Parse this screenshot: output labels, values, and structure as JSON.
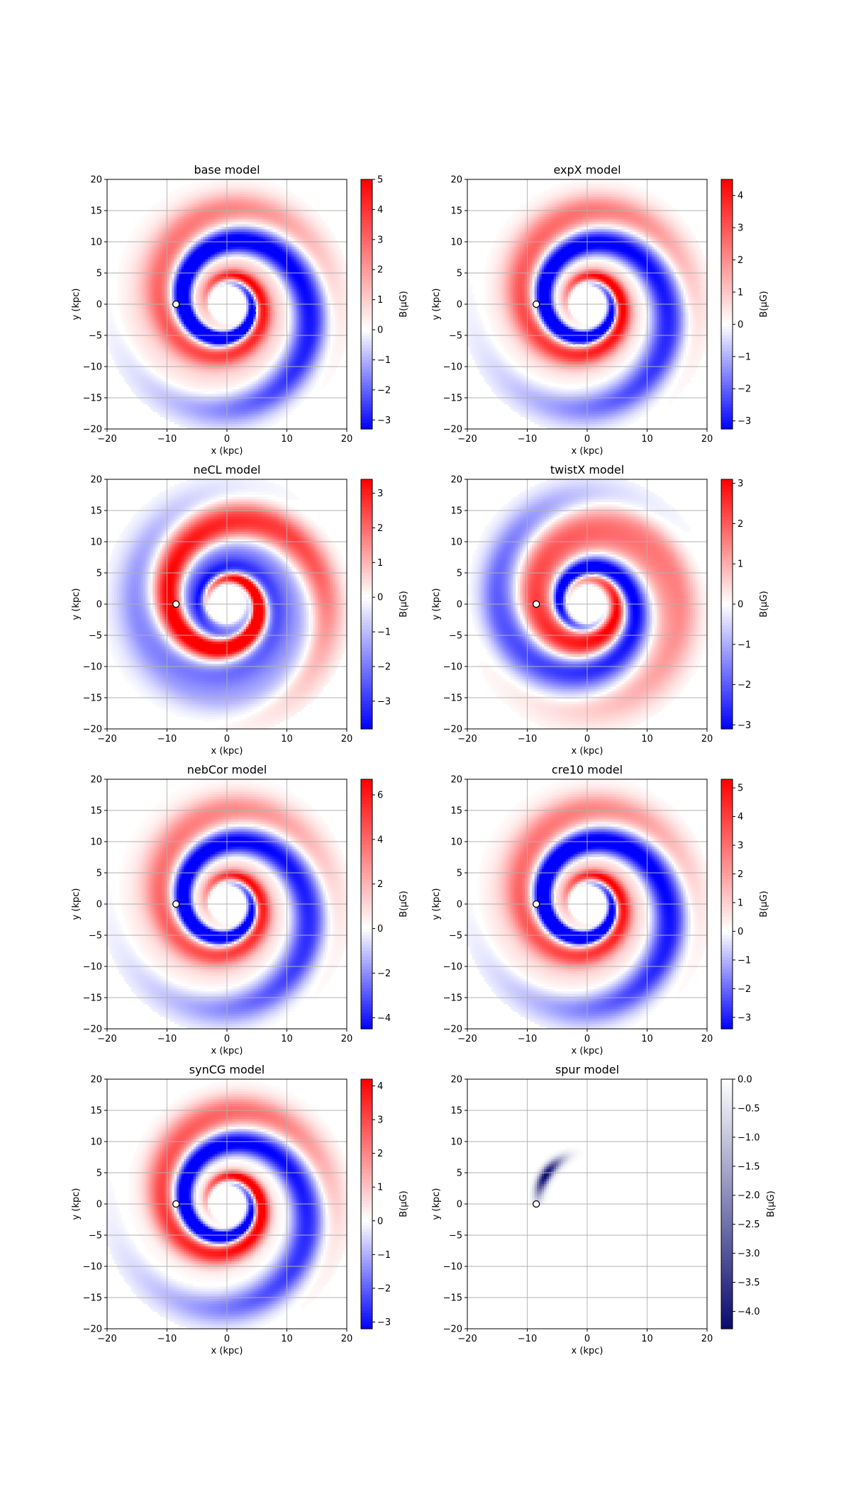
{
  "chart_data": [
    {
      "type": "heatmap",
      "title": "base model",
      "xlabel": "x (kpc)",
      "ylabel": "y (kpc)",
      "xlim": [
        -20,
        20
      ],
      "ylim": [
        -20,
        20
      ],
      "xticks": [
        "−20",
        "−10",
        "0",
        "10",
        "20"
      ],
      "yticks": [
        "20",
        "15",
        "10",
        "5",
        "0",
        "−5",
        "−10",
        "−15",
        "−20"
      ],
      "grid": true,
      "colormap": "bwr",
      "colorbar": {
        "label": "B(μG)",
        "range": [
          -3.3,
          5.0
        ],
        "ticks": [
          "5",
          "4",
          "3",
          "2",
          "1",
          "0",
          "−1",
          "−2",
          "−3"
        ],
        "tick_values": [
          5,
          4,
          3,
          2,
          1,
          0,
          -1,
          -2,
          -3
        ]
      },
      "marker": {
        "x": -8.5,
        "y": 0
      }
    },
    {
      "type": "heatmap",
      "title": "expX model",
      "xlabel": "x (kpc)",
      "ylabel": "y (kpc)",
      "xlim": [
        -20,
        20
      ],
      "ylim": [
        -20,
        20
      ],
      "xticks": [
        "−20",
        "−10",
        "0",
        "10",
        "20"
      ],
      "yticks": [
        "20",
        "15",
        "10",
        "5",
        "0",
        "−5",
        "−10",
        "−15",
        "−20"
      ],
      "grid": true,
      "colormap": "bwr",
      "colorbar": {
        "label": "B(μG)",
        "range": [
          -3.25,
          4.5
        ],
        "ticks": [
          "4",
          "3",
          "2",
          "1",
          "0",
          "−1",
          "−2",
          "−3"
        ],
        "tick_values": [
          4,
          3,
          2,
          1,
          0,
          -1,
          -2,
          -3
        ]
      },
      "marker": {
        "x": -8.5,
        "y": 0
      }
    },
    {
      "type": "heatmap",
      "title": "neCL model",
      "xlabel": "x (kpc)",
      "ylabel": "y (kpc)",
      "xlim": [
        -20,
        20
      ],
      "ylim": [
        -20,
        20
      ],
      "xticks": [
        "−20",
        "−10",
        "0",
        "10",
        "20"
      ],
      "yticks": [
        "20",
        "15",
        "10",
        "5",
        "0",
        "−5",
        "−10",
        "−15",
        "−20"
      ],
      "grid": true,
      "colormap": "bwr",
      "colorbar": {
        "label": "B(μG)",
        "range": [
          -3.8,
          3.4
        ],
        "ticks": [
          "3",
          "2",
          "1",
          "0",
          "−1",
          "−2",
          "−3"
        ],
        "tick_values": [
          3,
          2,
          1,
          0,
          -1,
          -2,
          -3
        ]
      },
      "marker": {
        "x": -8.5,
        "y": 0
      }
    },
    {
      "type": "heatmap",
      "title": "twistX model",
      "xlabel": "x (kpc)",
      "ylabel": "y (kpc)",
      "xlim": [
        -20,
        20
      ],
      "ylim": [
        -20,
        20
      ],
      "xticks": [
        "−20",
        "−10",
        "0",
        "10",
        "20"
      ],
      "yticks": [
        "20",
        "15",
        "10",
        "5",
        "0",
        "−5",
        "−10",
        "−15",
        "−20"
      ],
      "grid": true,
      "colormap": "bwr",
      "colorbar": {
        "label": "B(μG)",
        "range": [
          -3.1,
          3.1
        ],
        "ticks": [
          "3",
          "2",
          "1",
          "0",
          "−1",
          "−2",
          "−3"
        ],
        "tick_values": [
          3,
          2,
          1,
          0,
          -1,
          -2,
          -3
        ]
      },
      "marker": {
        "x": -8.5,
        "y": 0
      }
    },
    {
      "type": "heatmap",
      "title": "nebCor model",
      "xlabel": "x (kpc)",
      "ylabel": "y (kpc)",
      "xlim": [
        -20,
        20
      ],
      "ylim": [
        -20,
        20
      ],
      "xticks": [
        "−20",
        "−10",
        "0",
        "10",
        "20"
      ],
      "yticks": [
        "20",
        "15",
        "10",
        "5",
        "0",
        "−5",
        "−10",
        "−15",
        "−20"
      ],
      "grid": true,
      "colormap": "bwr",
      "colorbar": {
        "label": "B(μG)",
        "range": [
          -4.5,
          6.7
        ],
        "ticks": [
          "6",
          "4",
          "2",
          "0",
          "−2",
          "−4"
        ],
        "tick_values": [
          6,
          4,
          2,
          0,
          -2,
          -4
        ]
      },
      "marker": {
        "x": -8.5,
        "y": 0
      }
    },
    {
      "type": "heatmap",
      "title": "cre10 model",
      "xlabel": "x (kpc)",
      "ylabel": "y (kpc)",
      "xlim": [
        -20,
        20
      ],
      "ylim": [
        -20,
        20
      ],
      "xticks": [
        "−20",
        "−10",
        "0",
        "10",
        "20"
      ],
      "yticks": [
        "20",
        "15",
        "10",
        "5",
        "0",
        "−5",
        "−10",
        "−15",
        "−20"
      ],
      "grid": true,
      "colormap": "bwr",
      "colorbar": {
        "label": "B(μG)",
        "range": [
          -3.4,
          5.3
        ],
        "ticks": [
          "5",
          "4",
          "3",
          "2",
          "1",
          "0",
          "−1",
          "−2",
          "−3"
        ],
        "tick_values": [
          5,
          4,
          3,
          2,
          1,
          0,
          -1,
          -2,
          -3
        ]
      },
      "marker": {
        "x": -8.5,
        "y": 0
      }
    },
    {
      "type": "heatmap",
      "title": "synCG model",
      "xlabel": "x (kpc)",
      "ylabel": "y (kpc)",
      "xlim": [
        -20,
        20
      ],
      "ylim": [
        -20,
        20
      ],
      "xticks": [
        "−20",
        "−10",
        "0",
        "10",
        "20"
      ],
      "yticks": [
        "20",
        "15",
        "10",
        "5",
        "0",
        "−5",
        "−10",
        "−15",
        "−20"
      ],
      "grid": true,
      "colormap": "bwr",
      "colorbar": {
        "label": "B(μG)",
        "range": [
          -3.2,
          4.2
        ],
        "ticks": [
          "4",
          "3",
          "2",
          "1",
          "0",
          "−1",
          "−2",
          "−3"
        ],
        "tick_values": [
          4,
          3,
          2,
          1,
          0,
          -1,
          -2,
          -3
        ]
      },
      "marker": {
        "x": -8.5,
        "y": 0
      }
    },
    {
      "type": "heatmap",
      "title": "spur model",
      "xlabel": "x (kpc)",
      "ylabel": "y (kpc)",
      "xlim": [
        -20,
        20
      ],
      "ylim": [
        -20,
        20
      ],
      "xticks": [
        "−20",
        "−10",
        "0",
        "10",
        "20"
      ],
      "yticks": [
        "20",
        "15",
        "10",
        "5",
        "0",
        "−5",
        "−10",
        "−15",
        "−20"
      ],
      "grid": true,
      "colormap": "navy-white",
      "colorbar": {
        "label": "B(μG)",
        "range": [
          -4.3,
          0.0
        ],
        "ticks": [
          "0.0",
          "−0.5",
          "−1.0",
          "−1.5",
          "−2.0",
          "−2.5",
          "−3.0",
          "−3.5",
          "−4.0"
        ],
        "tick_values": [
          0.0,
          -0.5,
          -1.0,
          -1.5,
          -2.0,
          -2.5,
          -3.0,
          -3.5,
          -4.0
        ]
      },
      "marker": {
        "x": -8.5,
        "y": 0
      }
    }
  ],
  "colors": {
    "positive": "#ff0000",
    "negative": "#0000ff",
    "spur": "#0a0a6e",
    "grid": "#b0b0b0"
  }
}
